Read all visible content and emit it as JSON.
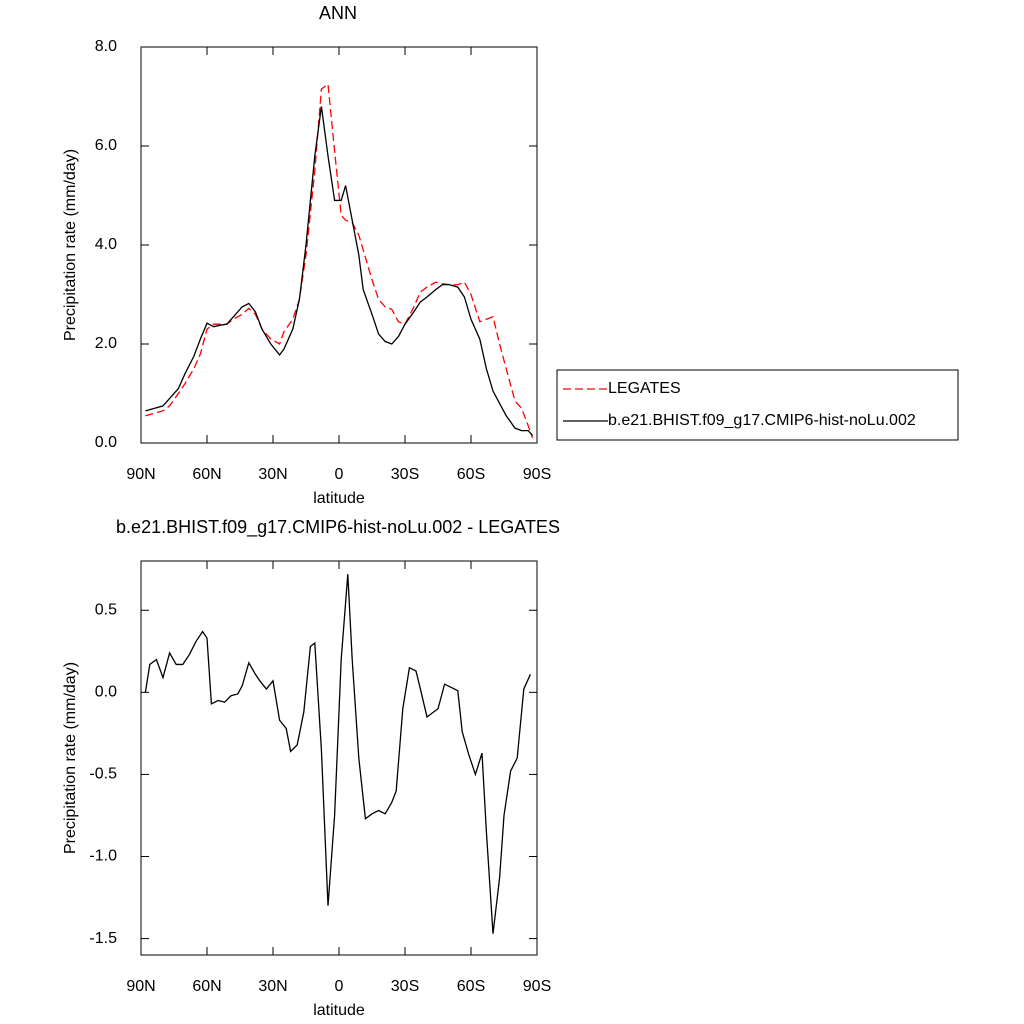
{
  "chart_data": [
    {
      "type": "line",
      "title": "ANN",
      "xlabel": "latitude",
      "ylabel": "Precipitation rate (mm/day)",
      "x": [
        88,
        80,
        77,
        73,
        70,
        66,
        63,
        60,
        57,
        54,
        51,
        48,
        44,
        41,
        38,
        35,
        31,
        27,
        25,
        21,
        18,
        15,
        11,
        8,
        5,
        2,
        -1,
        -3,
        -6,
        -9,
        -11,
        -15,
        -18,
        -21,
        -24,
        -27,
        -30,
        -34,
        -37,
        -40,
        -44,
        -47,
        -50,
        -54,
        -57,
        -60,
        -64,
        -67,
        -70,
        -73,
        -76,
        -80,
        -83,
        -86,
        -88
      ],
      "series": [
        {
          "name": "LEGATES",
          "color": "#ff0000",
          "line_style": "dashed",
          "values": [
            0.55,
            0.65,
            0.75,
            1.0,
            1.2,
            1.5,
            1.8,
            2.3,
            2.4,
            2.4,
            2.4,
            2.5,
            2.6,
            2.72,
            2.6,
            2.3,
            2.1,
            2.0,
            2.25,
            2.5,
            2.9,
            3.8,
            5.5,
            7.15,
            7.25,
            5.9,
            4.6,
            4.5,
            4.45,
            4.2,
            3.9,
            3.3,
            2.9,
            2.75,
            2.7,
            2.45,
            2.4,
            2.75,
            3.05,
            3.15,
            3.25,
            3.22,
            3.2,
            3.2,
            3.25,
            3.0,
            2.45,
            2.5,
            2.55,
            2.0,
            1.5,
            0.85,
            0.7,
            0.35,
            0.1
          ]
        },
        {
          "name": "b.e21.BHIST.f09_g17.CMIP6-hist-noLu.002",
          "color": "#000000",
          "line_style": "solid",
          "values": [
            0.65,
            0.75,
            0.9,
            1.1,
            1.4,
            1.75,
            2.1,
            2.42,
            2.35,
            2.38,
            2.4,
            2.55,
            2.75,
            2.82,
            2.65,
            2.3,
            2.0,
            1.78,
            1.9,
            2.3,
            2.9,
            4.0,
            5.8,
            6.8,
            5.8,
            4.9,
            4.9,
            5.2,
            4.5,
            3.8,
            3.1,
            2.6,
            2.2,
            2.05,
            2.0,
            2.15,
            2.4,
            2.65,
            2.85,
            2.95,
            3.1,
            3.2,
            3.2,
            3.15,
            2.95,
            2.5,
            2.1,
            1.5,
            1.05,
            0.8,
            0.55,
            0.3,
            0.25,
            0.25,
            0.15
          ]
        }
      ],
      "xlim": [
        90,
        -90
      ],
      "xticks": [
        {
          "value": 90,
          "label": "90N"
        },
        {
          "value": 60,
          "label": "60N"
        },
        {
          "value": 30,
          "label": "30N"
        },
        0,
        {
          "value": -30,
          "label": "30S"
        },
        {
          "value": -60,
          "label": "60S"
        },
        {
          "value": -90,
          "label": "90S"
        }
      ],
      "ylim": [
        0,
        8
      ],
      "yticks": [
        {
          "value": 0,
          "label": "0.0"
        },
        {
          "value": 2,
          "label": "2.0"
        },
        {
          "value": 4,
          "label": "4.0"
        },
        {
          "value": 6,
          "label": "6.0"
        },
        {
          "value": 8,
          "label": "8.0"
        }
      ],
      "legend": "right"
    },
    {
      "type": "line",
      "title": "b.e21.BHIST.f09_g17.CMIP6-hist-noLu.002 - LEGATES",
      "xlabel": "latitude",
      "ylabel": "Precipitation rate (mm/day)",
      "x": [
        88,
        86,
        83,
        80,
        77,
        74,
        71,
        68,
        65,
        62,
        60,
        58,
        55,
        52,
        49,
        46,
        44,
        41,
        38,
        36,
        33,
        30,
        27,
        24,
        22,
        19,
        16,
        13,
        11,
        8,
        5,
        2,
        -1,
        -4,
        -6,
        -9,
        -12,
        -15,
        -18,
        -21,
        -24,
        -26,
        -29,
        -32,
        -35,
        -37,
        -40,
        -43,
        -45,
        -48,
        -51,
        -54,
        -56,
        -59,
        -62,
        -65,
        -67,
        -70,
        -73,
        -75,
        -78,
        -81,
        -84,
        -87
      ],
      "values": [
        0.0,
        0.17,
        0.2,
        0.09,
        0.24,
        0.17,
        0.17,
        0.23,
        0.31,
        0.37,
        0.33,
        -0.07,
        -0.05,
        -0.06,
        -0.02,
        -0.01,
        0.04,
        0.18,
        0.11,
        0.07,
        0.02,
        0.07,
        -0.17,
        -0.22,
        -0.36,
        -0.32,
        -0.12,
        0.28,
        0.3,
        -0.35,
        -1.3,
        -0.75,
        0.2,
        0.72,
        0.2,
        -0.4,
        -0.77,
        -0.74,
        -0.72,
        -0.74,
        -0.67,
        -0.6,
        -0.1,
        0.15,
        0.13,
        0.02,
        -0.15,
        -0.12,
        -0.1,
        0.05,
        0.03,
        0.01,
        -0.24,
        -0.38,
        -0.5,
        -0.37,
        -0.85,
        -1.47,
        -1.13,
        -0.75,
        -0.48,
        -0.4,
        0.02,
        0.11
      ],
      "color": "#000000",
      "xlim": [
        90,
        -90
      ],
      "xticks": [
        {
          "value": 90,
          "label": "90N"
        },
        {
          "value": 60,
          "label": "60N"
        },
        {
          "value": 30,
          "label": "30N"
        },
        0,
        {
          "value": -30,
          "label": "30S"
        },
        {
          "value": -60,
          "label": "60S"
        },
        {
          "value": -90,
          "label": "90S"
        }
      ],
      "ylim": [
        -1.6,
        0.8
      ],
      "yticks": [
        -1.5,
        {
          "value": -1,
          "label": "-1.0"
        },
        -0.5,
        {
          "value": 0,
          "label": "0.0"
        },
        0.5
      ]
    }
  ]
}
